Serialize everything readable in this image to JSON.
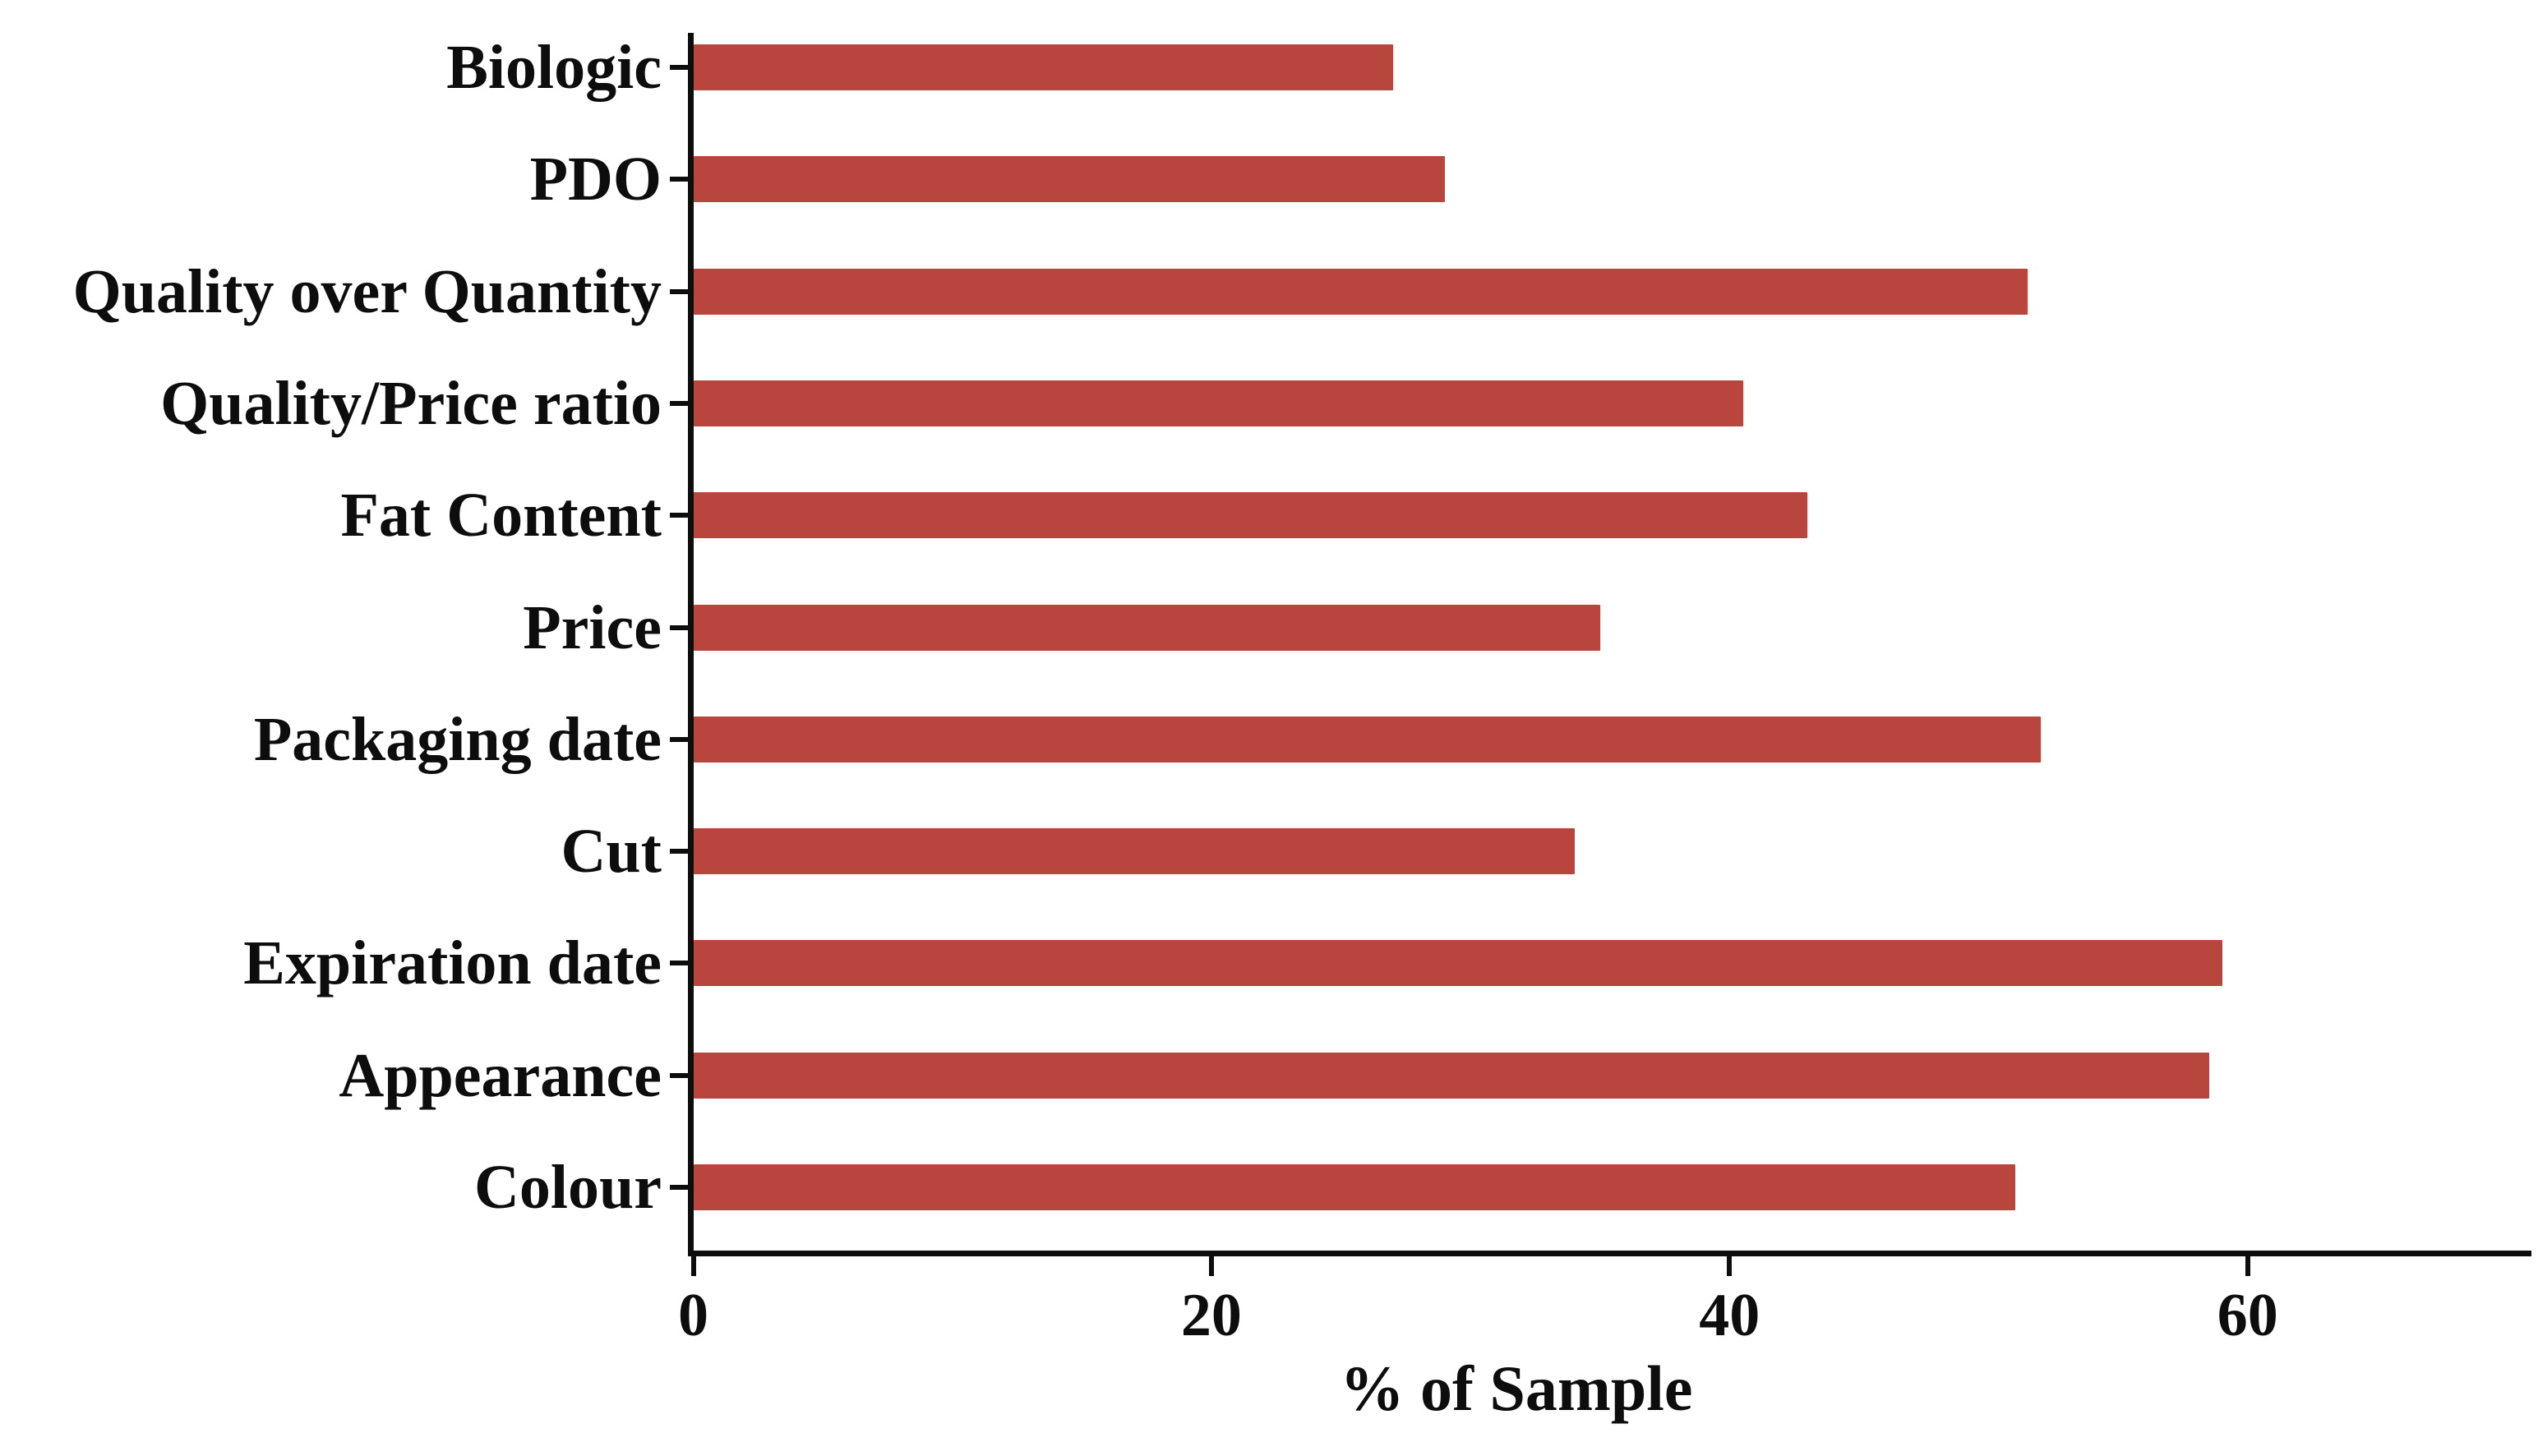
{
  "figure": {
    "background_color": "#ffffff",
    "text_color": "#0d0d0d",
    "axis_color": "#0d0d0d"
  },
  "chart_data": {
    "type": "bar",
    "orientation": "horizontal",
    "title": "",
    "xlabel": "% of Sample",
    "ylabel": "",
    "categories": [
      "Biologic",
      "PDO",
      "Quality over Quantity",
      "Quality/Price ratio",
      "Fat Content",
      "Price",
      "Packaging date",
      "Cut",
      "Expiration date",
      "Appearance",
      "Colour"
    ],
    "values": [
      27,
      29,
      51.5,
      40.5,
      43,
      35,
      52,
      34,
      59,
      58.5,
      51
    ],
    "x_ticks": [
      0,
      20,
      40,
      60
    ],
    "x_tick_labels": [
      "0",
      "20",
      "40",
      "60"
    ],
    "xlim": [
      0,
      71
    ],
    "bar_color": "#b9453f",
    "grid": false,
    "legend": null
  }
}
